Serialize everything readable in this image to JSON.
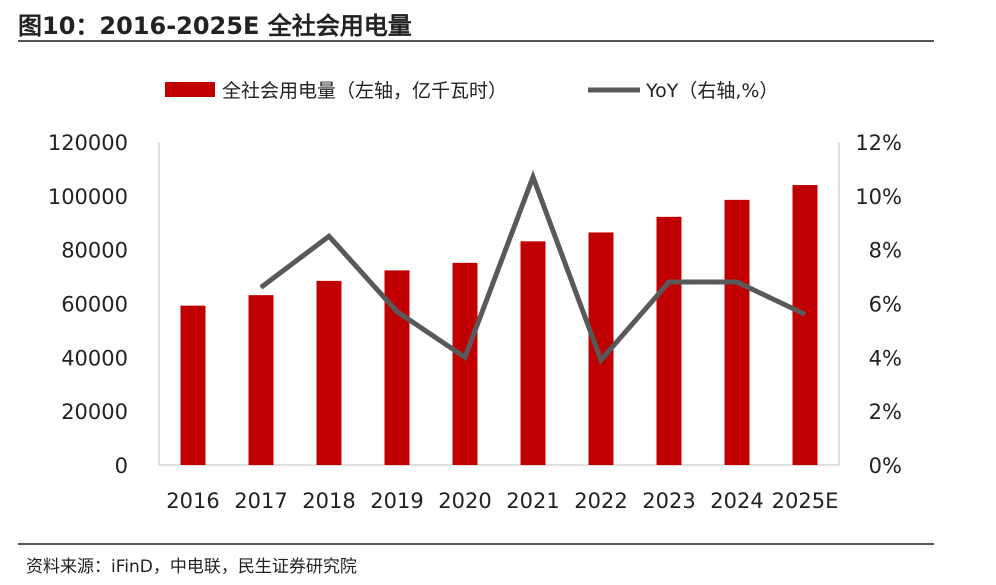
{
  "header": {
    "title": "图10：2016-2025E 全社会用电量"
  },
  "footer": {
    "source": "资料来源：iFinD，中电联，民生证券研究院"
  },
  "colors": {
    "bar": "#C00000",
    "line": "#595959",
    "axis": "#bfbfbf",
    "text": "#222222"
  },
  "chart_data": {
    "type": "bar",
    "title": "",
    "categories": [
      "2016",
      "2017",
      "2018",
      "2019",
      "2020",
      "2021",
      "2022",
      "2023",
      "2024",
      "2025E"
    ],
    "legend_position": "top",
    "grid": false,
    "series": [
      {
        "name": "全社会用电量（左轴，亿千瓦时）",
        "type": "bar",
        "axis": "left",
        "values": [
          59200,
          63100,
          68400,
          72300,
          75100,
          83100,
          86400,
          92200,
          98500,
          104000
        ]
      },
      {
        "name": "YoY（右轴,%）",
        "type": "line",
        "axis": "right",
        "values": [
          null,
          6.6,
          8.5,
          5.7,
          4.0,
          10.7,
          3.9,
          6.8,
          6.8,
          5.6
        ]
      }
    ],
    "y_left": {
      "min": 0,
      "max": 120000,
      "ticks": [
        "0",
        "20000",
        "40000",
        "60000",
        "80000",
        "100000",
        "120000"
      ]
    },
    "y_right": {
      "min": 0,
      "max": 12,
      "ticks": [
        "0%",
        "2%",
        "4%",
        "6%",
        "8%",
        "10%",
        "12%"
      ]
    }
  }
}
